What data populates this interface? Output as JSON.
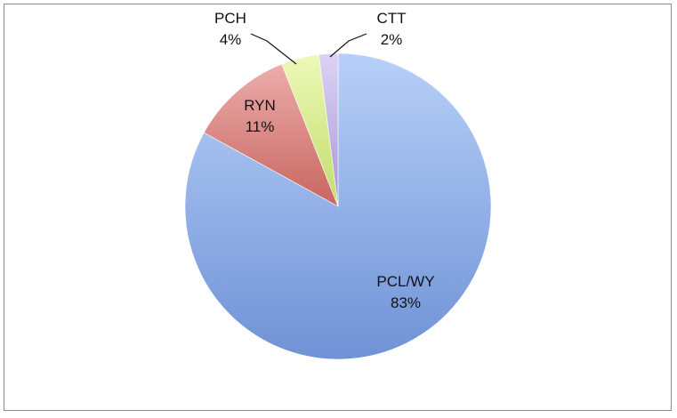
{
  "chart_data": {
    "type": "pie",
    "title": "",
    "slices": [
      {
        "label": "PCL/WY",
        "value": 83,
        "value_label": "83%",
        "color": "#8fb0e8",
        "color_light": "#b8d0f8",
        "color_dark": "#6f92d6"
      },
      {
        "label": "RYN",
        "value": 11,
        "value_label": "11%",
        "color": "#d9807c",
        "color_light": "#ecadaa",
        "color_dark": "#c86560"
      },
      {
        "label": "PCH",
        "value": 4,
        "value_label": "4%",
        "color": "#d8ef8a",
        "color_light": "#ecf9b8",
        "color_dark": "#c3dc6a"
      },
      {
        "label": "CTT",
        "value": 2,
        "value_label": "2%",
        "color": "#c4b4e6",
        "color_light": "#ddd2f4",
        "color_dark": "#a897d4"
      }
    ],
    "start_angle_deg": 0,
    "direction": "clockwise",
    "legend": "none",
    "border_color": "#8c8c8c"
  }
}
